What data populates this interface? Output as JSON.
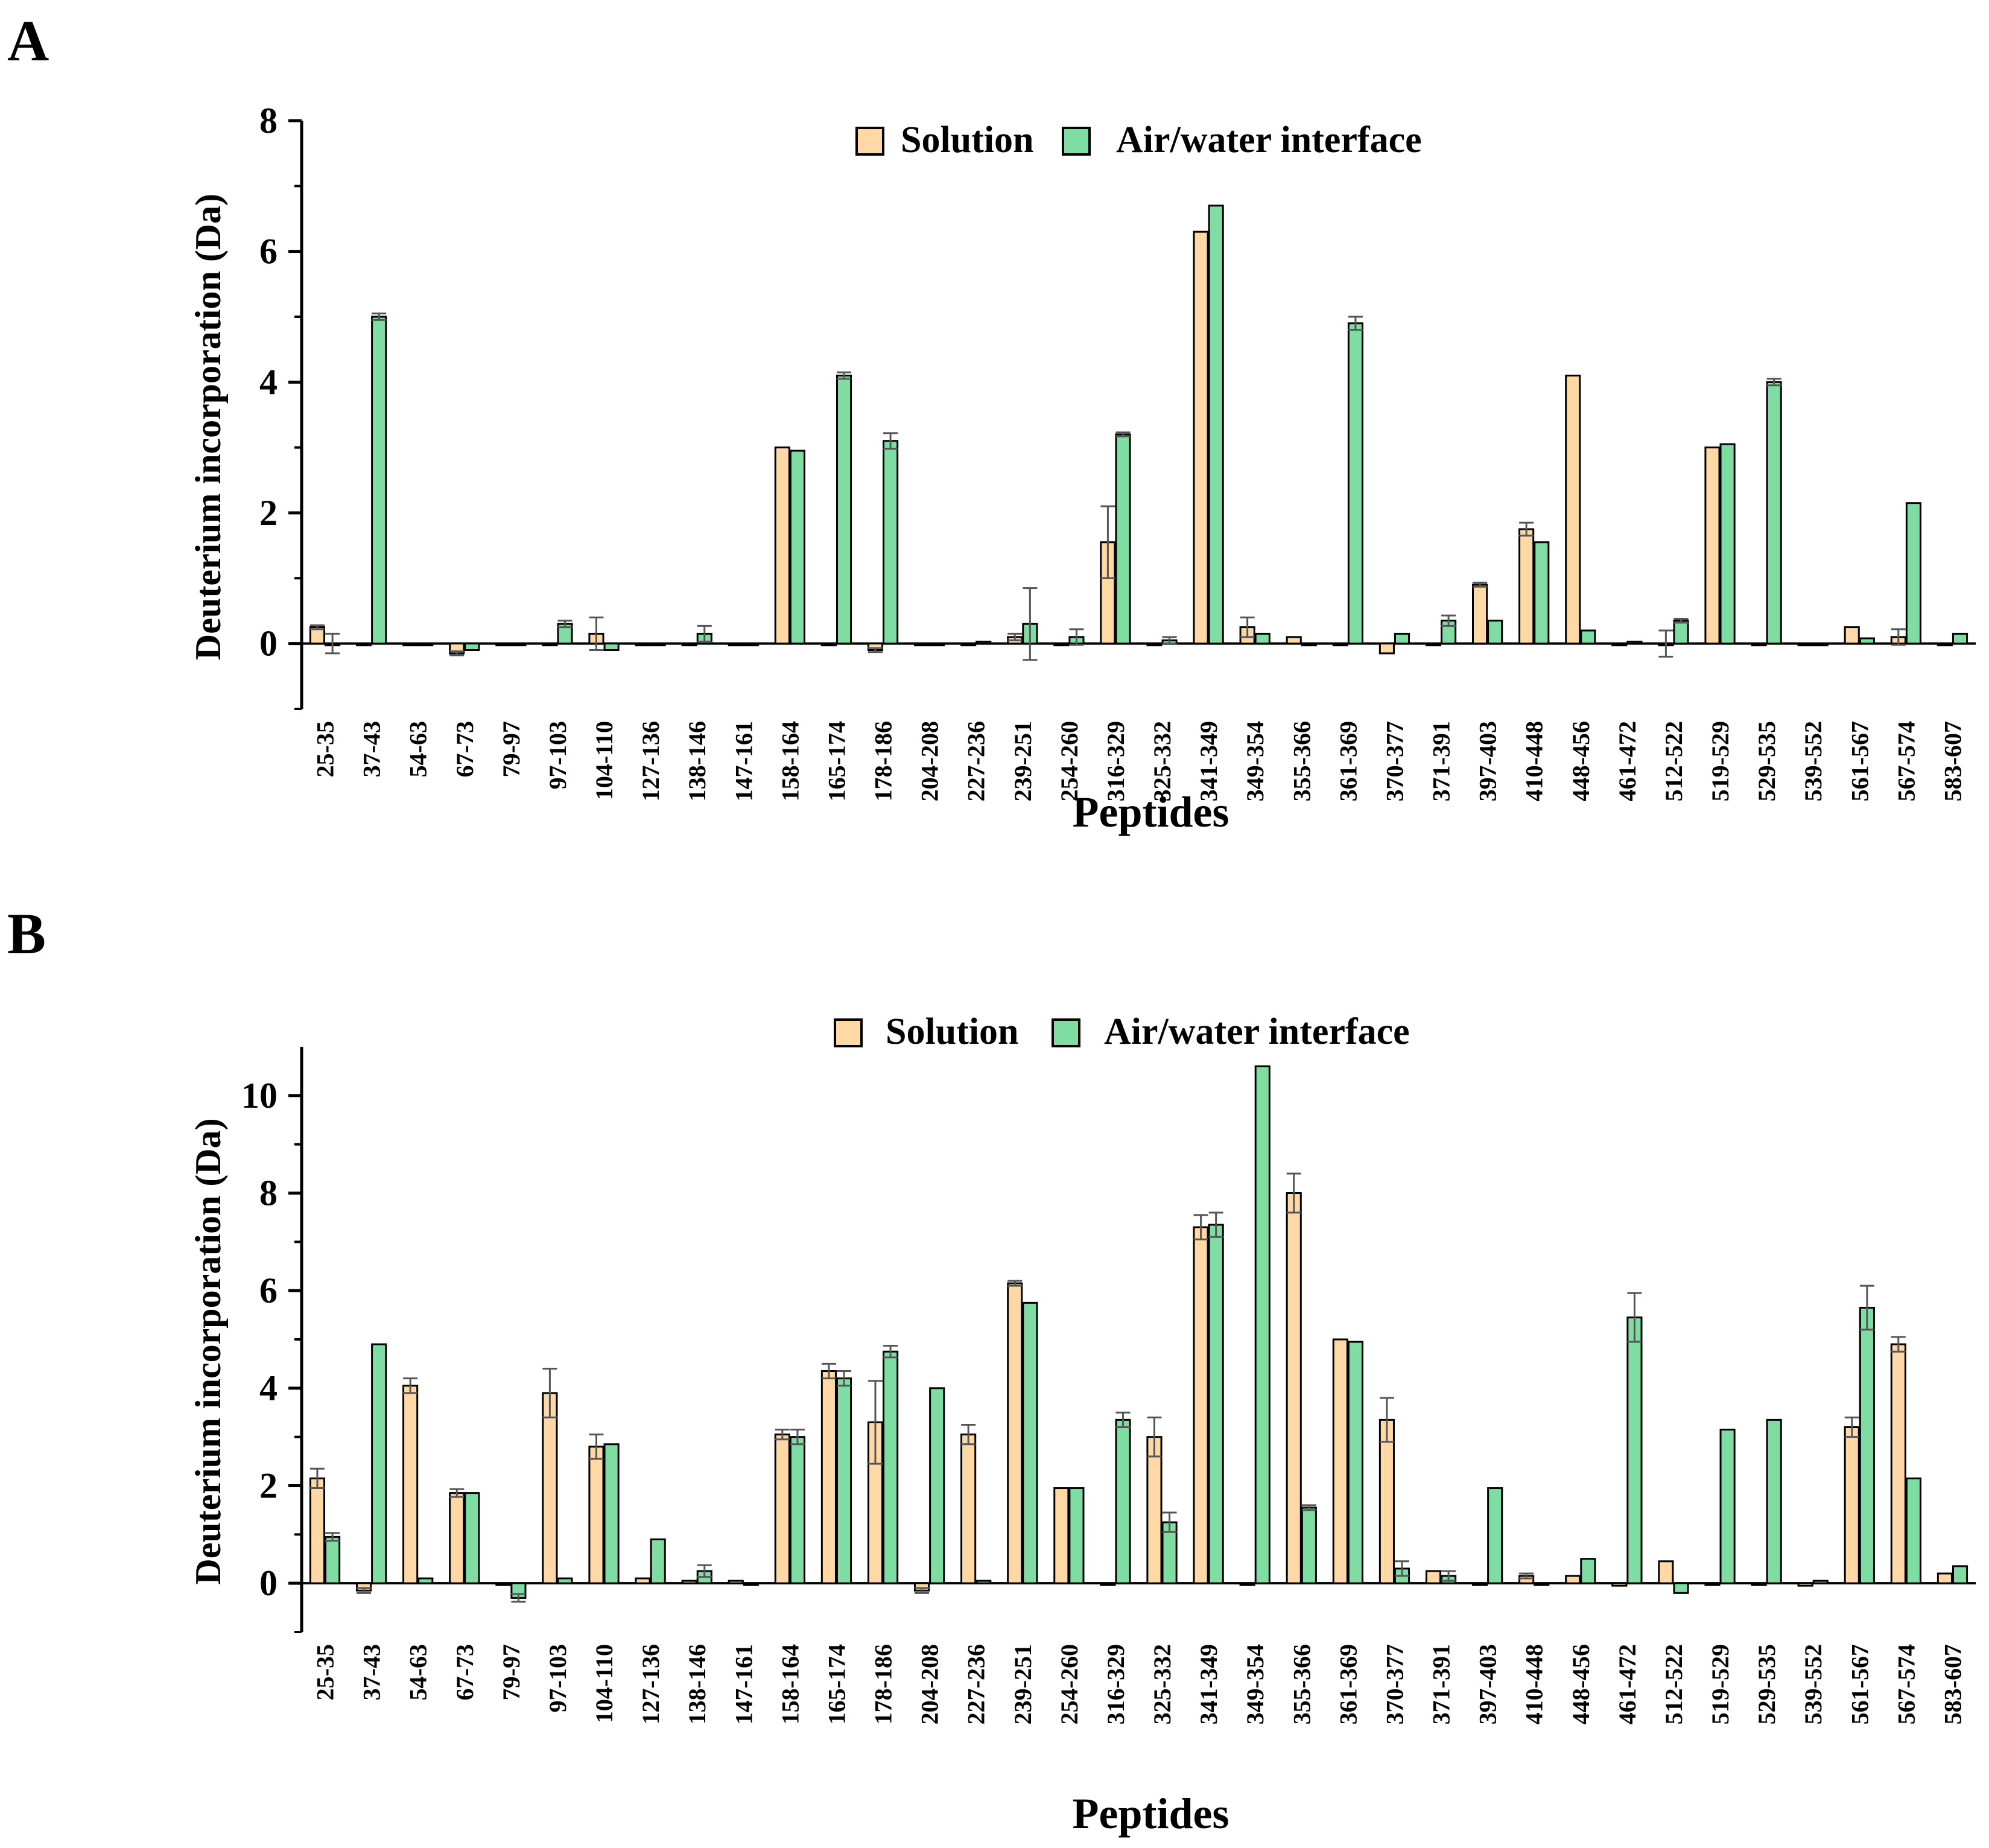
{
  "panels": [
    "A",
    "B"
  ],
  "colors": {
    "solution": "#FFD8A6",
    "interface": "#7FDDA3",
    "axis": "#000000"
  },
  "chart_data": [
    {
      "type": "bar",
      "panel": "A",
      "title": "",
      "xlabel": "Peptides",
      "ylabel": "Deuterium incorporation (Da)",
      "ylim": [
        -1,
        8
      ],
      "yticks": [
        0,
        2,
        4,
        6,
        8
      ],
      "legend": [
        "Solution",
        "Air/water interface"
      ],
      "legend_position": "top-center",
      "categories": [
        "25-35",
        "37-43",
        "54-63",
        "67-73",
        "79-97",
        "97-103",
        "104-110",
        "127-136",
        "138-146",
        "147-161",
        "158-164",
        "165-174",
        "178-186",
        "204-208",
        "227-236",
        "239-251",
        "254-260",
        "316-329",
        "325-332",
        "341-349",
        "349-354",
        "355-366",
        "361-369",
        "370-377",
        "371-391",
        "397-403",
        "410-448",
        "448-456",
        "461-472",
        "512-522",
        "519-529",
        "529-535",
        "539-552",
        "561-567",
        "567-574",
        "583-607"
      ],
      "series": [
        {
          "name": "Solution",
          "values": [
            0.25,
            0,
            0,
            -0.15,
            0,
            0,
            0.15,
            0,
            0,
            0,
            3.0,
            0,
            -0.1,
            0,
            0,
            0.1,
            0,
            1.55,
            0,
            6.3,
            0.25,
            0.1,
            0,
            -0.15,
            0,
            0.9,
            1.75,
            4.1,
            0,
            0,
            3.0,
            0,
            0,
            0.25,
            0.1,
            0
          ],
          "errors": [
            0.03,
            0,
            0,
            0.03,
            0,
            0,
            0.25,
            0,
            0,
            0,
            0,
            0,
            0.03,
            0,
            0,
            0.05,
            0,
            0.55,
            0,
            0,
            0.15,
            0,
            0,
            0,
            0,
            0.03,
            0.1,
            0,
            0,
            0.2,
            0,
            0,
            0,
            0,
            0.12,
            0
          ]
        },
        {
          "name": "Air/water interface",
          "values": [
            0,
            5.0,
            0,
            -0.1,
            0,
            0.3,
            -0.1,
            0,
            0.15,
            0,
            2.95,
            4.1,
            3.1,
            0,
            0.03,
            0.3,
            0.1,
            3.2,
            0.05,
            6.7,
            0.15,
            0,
            4.9,
            0.15,
            0.35,
            0.35,
            1.55,
            0.2,
            0.03,
            0.35,
            3.05,
            4.0,
            0,
            0.08,
            2.15,
            0.15
          ],
          "errors": [
            0.15,
            0.05,
            0,
            0,
            0,
            0.05,
            0,
            0,
            0.12,
            0,
            0,
            0.05,
            0.12,
            0,
            0,
            0.55,
            0.12,
            0.03,
            0.05,
            0,
            0,
            0,
            0.1,
            0,
            0.08,
            0,
            0,
            0,
            0,
            0.03,
            0,
            0.05,
            0,
            0,
            0,
            0
          ]
        }
      ]
    },
    {
      "type": "bar",
      "panel": "B",
      "title": "",
      "xlabel": "Peptides",
      "ylabel": "Deuterium incorporation (Da)",
      "ylim": [
        -1,
        11
      ],
      "yticks": [
        0,
        2,
        4,
        6,
        8,
        10
      ],
      "legend": [
        "Solution",
        "Air/water interface"
      ],
      "legend_position": "top-center",
      "categories": [
        "25-35",
        "37-43",
        "54-63",
        "67-73",
        "79-97",
        "97-103",
        "104-110",
        "127-136",
        "138-146",
        "147-161",
        "158-164",
        "165-174",
        "178-186",
        "204-208",
        "227-236",
        "239-251",
        "254-260",
        "316-329",
        "325-332",
        "341-349",
        "349-354",
        "355-366",
        "361-369",
        "370-377",
        "371-391",
        "397-403",
        "410-448",
        "448-456",
        "461-472",
        "512-522",
        "519-529",
        "529-535",
        "539-552",
        "561-567",
        "567-574",
        "583-607"
      ],
      "series": [
        {
          "name": "Solution",
          "values": [
            2.15,
            -0.15,
            4.05,
            1.85,
            0,
            3.9,
            2.8,
            0.1,
            0.05,
            0.05,
            3.05,
            4.35,
            3.3,
            -0.15,
            3.05,
            6.15,
            1.95,
            0,
            3.0,
            7.3,
            0,
            8.0,
            5.0,
            3.35,
            0.25,
            0,
            0.15,
            0.15,
            -0.05,
            0.45,
            0,
            0,
            -0.05,
            3.2,
            4.9,
            0.2
          ],
          "errors": [
            0.2,
            0.05,
            0.15,
            0.08,
            0,
            0.5,
            0.25,
            0,
            0,
            0,
            0.1,
            0.15,
            0.85,
            0.05,
            0.2,
            0.05,
            0,
            0,
            0.4,
            0.25,
            0,
            0.4,
            0,
            0.45,
            0,
            0,
            0.05,
            0,
            0,
            0,
            0,
            0,
            0,
            0.2,
            0.15,
            0
          ]
        },
        {
          "name": "Air/water interface",
          "values": [
            0.95,
            4.9,
            0.1,
            1.85,
            -0.3,
            0.1,
            2.85,
            0.9,
            0.25,
            0,
            3.0,
            4.2,
            4.75,
            4.0,
            0.05,
            5.75,
            1.95,
            3.35,
            1.25,
            7.35,
            10.6,
            1.55,
            4.95,
            0.3,
            0.15,
            1.95,
            0,
            0.5,
            5.45,
            -0.2,
            3.15,
            3.35,
            0.05,
            5.65,
            2.15,
            0.35
          ],
          "errors": [
            0.08,
            0,
            0,
            0,
            0.08,
            0,
            0,
            0,
            0.12,
            0,
            0.15,
            0.15,
            0.12,
            0,
            0,
            0,
            0,
            0.15,
            0.2,
            0.25,
            0,
            0.05,
            0,
            0.15,
            0.1,
            0,
            0,
            0,
            0.5,
            0,
            0,
            0,
            0,
            0.45,
            0,
            0
          ]
        }
      ]
    }
  ]
}
